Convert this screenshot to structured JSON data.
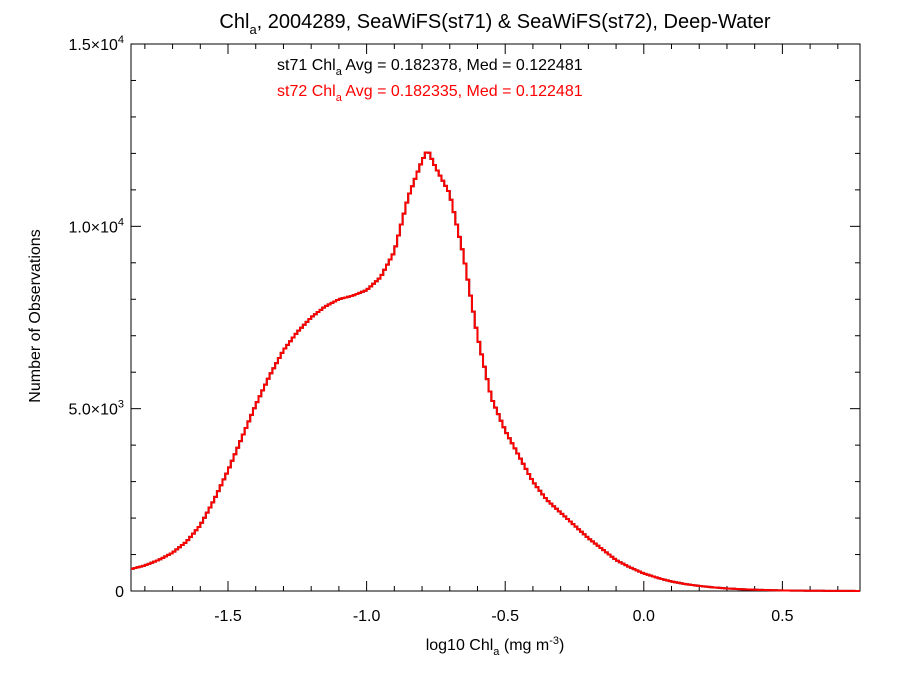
{
  "chart_data": {
    "type": "histogram-step",
    "title": {
      "pre": "Chl",
      "sub": "a",
      "post": ", 2004289, SeaWiFS(st71) & SeaWiFS(st72), Deep-Water"
    },
    "xlabel": {
      "pre": "log10 Chl",
      "sub": "a",
      "mid": " (mg m",
      "sup": "-3",
      "post": ")"
    },
    "ylabel": "Number of Observations",
    "xlim": [
      -1.85,
      0.78
    ],
    "ylim": [
      0,
      15000
    ],
    "x_ticks": [
      {
        "value": -1.5,
        "label": "-1.5"
      },
      {
        "value": -1.0,
        "label": "-1.0"
      },
      {
        "value": -0.5,
        "label": "-0.5"
      },
      {
        "value": 0.0,
        "label": "0.0"
      },
      {
        "value": 0.5,
        "label": "0.5"
      }
    ],
    "y_ticks": [
      {
        "value": 0,
        "mant": "0",
        "exp": ""
      },
      {
        "value": 5000,
        "mant": "5.0×10",
        "exp": "3"
      },
      {
        "value": 10000,
        "mant": "1.0×10",
        "exp": "4"
      },
      {
        "value": 15000,
        "mant": "1.5×10",
        "exp": "4"
      }
    ],
    "annotations": [
      {
        "series": "st71",
        "pre": "st71 Chl",
        "sub": "a",
        "post": " Avg = 0.182378, Med = 0.122481",
        "color": "#000000"
      },
      {
        "series": "st72",
        "pre": "st72 Chl",
        "sub": "a",
        "post": " Avg = 0.182335, Med = 0.122481",
        "color": "#ff0000"
      }
    ],
    "series": [
      {
        "name": "st71",
        "color": "#000000",
        "points": [
          [
            -1.85,
            600
          ],
          [
            -1.8,
            700
          ],
          [
            -1.75,
            850
          ],
          [
            -1.7,
            1050
          ],
          [
            -1.65,
            1350
          ],
          [
            -1.6,
            1800
          ],
          [
            -1.55,
            2500
          ],
          [
            -1.5,
            3300
          ],
          [
            -1.45,
            4200
          ],
          [
            -1.4,
            5100
          ],
          [
            -1.35,
            5900
          ],
          [
            -1.3,
            6600
          ],
          [
            -1.25,
            7100
          ],
          [
            -1.2,
            7500
          ],
          [
            -1.15,
            7800
          ],
          [
            -1.1,
            8000
          ],
          [
            -1.05,
            8100
          ],
          [
            -1.0,
            8250
          ],
          [
            -0.95,
            8600
          ],
          [
            -0.9,
            9300
          ],
          [
            -0.85,
            10800
          ],
          [
            -0.8,
            11800
          ],
          [
            -0.78,
            12100
          ],
          [
            -0.75,
            11600
          ],
          [
            -0.7,
            10900
          ],
          [
            -0.65,
            9200
          ],
          [
            -0.6,
            7000
          ],
          [
            -0.55,
            5300
          ],
          [
            -0.5,
            4400
          ],
          [
            -0.45,
            3700
          ],
          [
            -0.4,
            3000
          ],
          [
            -0.35,
            2500
          ],
          [
            -0.3,
            2150
          ],
          [
            -0.25,
            1800
          ],
          [
            -0.2,
            1450
          ],
          [
            -0.15,
            1150
          ],
          [
            -0.1,
            850
          ],
          [
            -0.05,
            650
          ],
          [
            0.0,
            480
          ],
          [
            0.05,
            360
          ],
          [
            0.1,
            260
          ],
          [
            0.15,
            190
          ],
          [
            0.2,
            140
          ],
          [
            0.25,
            100
          ],
          [
            0.3,
            70
          ],
          [
            0.35,
            50
          ],
          [
            0.4,
            35
          ],
          [
            0.45,
            25
          ],
          [
            0.5,
            15
          ],
          [
            0.55,
            10
          ],
          [
            0.6,
            8
          ],
          [
            0.65,
            5
          ],
          [
            0.7,
            3
          ],
          [
            0.75,
            2
          ],
          [
            0.78,
            1
          ]
        ]
      },
      {
        "name": "st72",
        "color": "#ff0000",
        "points": [
          [
            -1.85,
            600
          ],
          [
            -1.8,
            700
          ],
          [
            -1.75,
            850
          ],
          [
            -1.7,
            1050
          ],
          [
            -1.65,
            1350
          ],
          [
            -1.6,
            1800
          ],
          [
            -1.55,
            2500
          ],
          [
            -1.5,
            3300
          ],
          [
            -1.45,
            4200
          ],
          [
            -1.4,
            5100
          ],
          [
            -1.35,
            5900
          ],
          [
            -1.3,
            6600
          ],
          [
            -1.25,
            7100
          ],
          [
            -1.2,
            7500
          ],
          [
            -1.15,
            7800
          ],
          [
            -1.1,
            8000
          ],
          [
            -1.05,
            8100
          ],
          [
            -1.0,
            8250
          ],
          [
            -0.95,
            8600
          ],
          [
            -0.9,
            9300
          ],
          [
            -0.85,
            10800
          ],
          [
            -0.8,
            11800
          ],
          [
            -0.78,
            12100
          ],
          [
            -0.75,
            11600
          ],
          [
            -0.7,
            10900
          ],
          [
            -0.65,
            9200
          ],
          [
            -0.6,
            7000
          ],
          [
            -0.55,
            5300
          ],
          [
            -0.5,
            4400
          ],
          [
            -0.45,
            3700
          ],
          [
            -0.4,
            3000
          ],
          [
            -0.35,
            2500
          ],
          [
            -0.3,
            2150
          ],
          [
            -0.25,
            1800
          ],
          [
            -0.2,
            1450
          ],
          [
            -0.15,
            1150
          ],
          [
            -0.1,
            850
          ],
          [
            -0.05,
            650
          ],
          [
            0.0,
            480
          ],
          [
            0.05,
            360
          ],
          [
            0.1,
            260
          ],
          [
            0.15,
            190
          ],
          [
            0.2,
            140
          ],
          [
            0.25,
            100
          ],
          [
            0.3,
            70
          ],
          [
            0.35,
            50
          ],
          [
            0.4,
            35
          ],
          [
            0.45,
            25
          ],
          [
            0.5,
            15
          ],
          [
            0.55,
            10
          ],
          [
            0.6,
            8
          ],
          [
            0.65,
            5
          ],
          [
            0.7,
            3
          ],
          [
            0.75,
            2
          ],
          [
            0.78,
            1
          ]
        ]
      }
    ],
    "grid": false,
    "legend": "none"
  }
}
